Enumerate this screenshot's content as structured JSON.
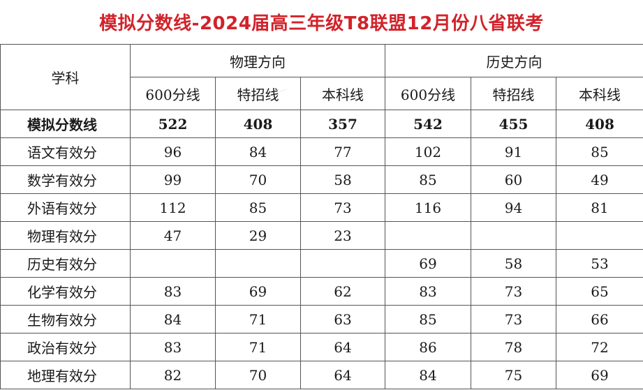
{
  "title": "模拟分数线-2024届高三年级T8联盟12月份八省联考",
  "header": {
    "subject_label": "学科",
    "directions": [
      "物理方向",
      "历史方向"
    ],
    "sub_headers": [
      "600分线",
      "特招线",
      "本科线",
      "600分线",
      "特招线",
      "本科线"
    ]
  },
  "rows": [
    {
      "label": "模拟分数线",
      "values": [
        "522",
        "408",
        "357",
        "542",
        "455",
        "408"
      ],
      "bold": true
    },
    {
      "label": "语文有效分",
      "values": [
        "96",
        "84",
        "77",
        "102",
        "91",
        "85"
      ]
    },
    {
      "label": "数学有效分",
      "values": [
        "99",
        "70",
        "58",
        "85",
        "60",
        "49"
      ]
    },
    {
      "label": "外语有效分",
      "values": [
        "112",
        "85",
        "73",
        "116",
        "94",
        "81"
      ]
    },
    {
      "label": "物理有效分",
      "values": [
        "47",
        "29",
        "23",
        "",
        "",
        ""
      ]
    },
    {
      "label": "历史有效分",
      "values": [
        "",
        "",
        "",
        "69",
        "58",
        "53"
      ]
    },
    {
      "label": "化学有效分",
      "values": [
        "83",
        "69",
        "62",
        "83",
        "73",
        "65"
      ]
    },
    {
      "label": "生物有效分",
      "values": [
        "84",
        "71",
        "63",
        "85",
        "73",
        "66"
      ]
    },
    {
      "label": "政治有效分",
      "values": [
        "83",
        "71",
        "64",
        "86",
        "78",
        "72"
      ]
    },
    {
      "label": "地理有效分",
      "values": [
        "82",
        "70",
        "64",
        "84",
        "75",
        "69"
      ]
    }
  ]
}
